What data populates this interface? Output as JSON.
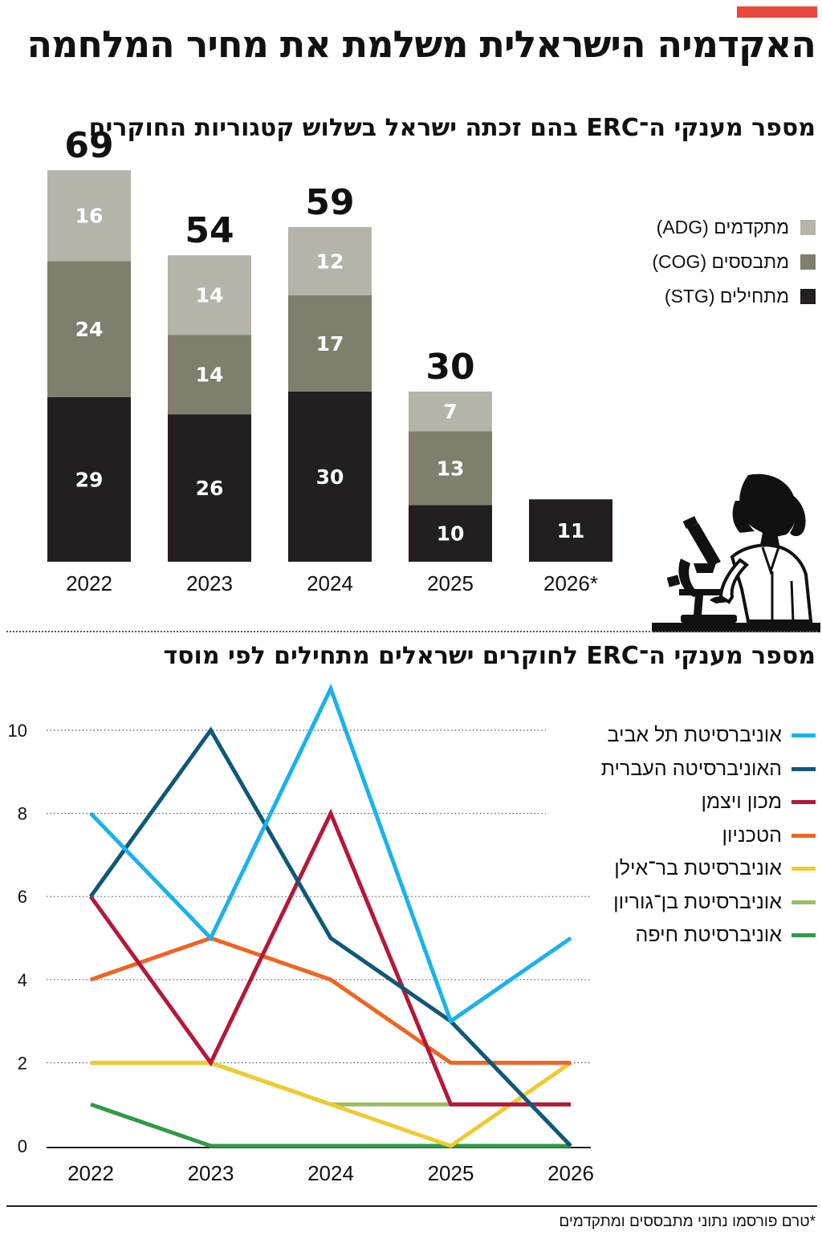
{
  "header": {
    "title": "האקדמיה הישראלית משלמת את מחיר המלחמה",
    "accent_color": "#e8473b"
  },
  "chart_data": [
    {
      "type": "bar",
      "stacked": true,
      "title": "מספר מענקי ה־ERC בהם זכתה ישראל בשלוש קטגוריות החוקרים",
      "categories": [
        "2022",
        "2023",
        "2024",
        "2025",
        "2026*"
      ],
      "totals": [
        69,
        54,
        59,
        30,
        null
      ],
      "series": [
        {
          "name": "מתחילים (STG)",
          "color": "#231f20",
          "label_color": "#ffffff",
          "values": [
            29,
            26,
            30,
            10,
            11
          ]
        },
        {
          "name": "מתבססים (COG)",
          "color": "#807f6e",
          "label_color": "#ffffff",
          "values": [
            24,
            14,
            17,
            13,
            null
          ]
        },
        {
          "name": "מתקדמים (ADG)",
          "color": "#b4b4aa",
          "label_color": "#ffffff",
          "values": [
            16,
            14,
            12,
            7,
            null
          ]
        }
      ],
      "legend_order": [
        "מתקדמים (ADG)",
        "מתבססים (COG)",
        "מתחילים (STG)"
      ],
      "legend_position": "top-right",
      "grid": false
    },
    {
      "type": "line",
      "title": "מספר מענקי ה־ERC לחוקרים ישראלים מתחילים לפי מוסד",
      "x": [
        "2022",
        "2023",
        "2024",
        "2025",
        "2026"
      ],
      "ylim": [
        0,
        10
      ],
      "yticks": [
        "0",
        "2",
        "4",
        "6",
        "8",
        "10"
      ],
      "grid": true,
      "legend_position": "top-right",
      "series": [
        {
          "name": "אוניברסיטת תל אביב",
          "color": "#19b2ec",
          "values": [
            8,
            5,
            11,
            3,
            5
          ]
        },
        {
          "name": "האוניברסיטה העברית",
          "color": "#0e5878",
          "values": [
            6,
            10,
            5,
            3,
            0
          ]
        },
        {
          "name": "מכון ויצמן",
          "color": "#b5173a",
          "values": [
            6,
            2,
            8,
            1,
            1
          ]
        },
        {
          "name": "הטכניון",
          "color": "#ef6424",
          "values": [
            4,
            5,
            4,
            2,
            2
          ]
        },
        {
          "name": "אוניברסיטת בר־אילן",
          "color": "#eecb31",
          "values": [
            2,
            2,
            1,
            0,
            2
          ]
        },
        {
          "name": "אוניברסיטת בן־גוריון",
          "color": "#9cbc66",
          "values": [
            2,
            2,
            1,
            1,
            1
          ]
        },
        {
          "name": "אוניברסיטת חיפה",
          "color": "#2f9a48",
          "values": [
            1,
            0,
            0,
            0,
            0
          ]
        }
      ]
    }
  ],
  "footnote": "*טרם פורסמו נתוני מתבססים ומתקדמים",
  "illustration": {
    "icon": "scientist-with-microscope-icon"
  }
}
